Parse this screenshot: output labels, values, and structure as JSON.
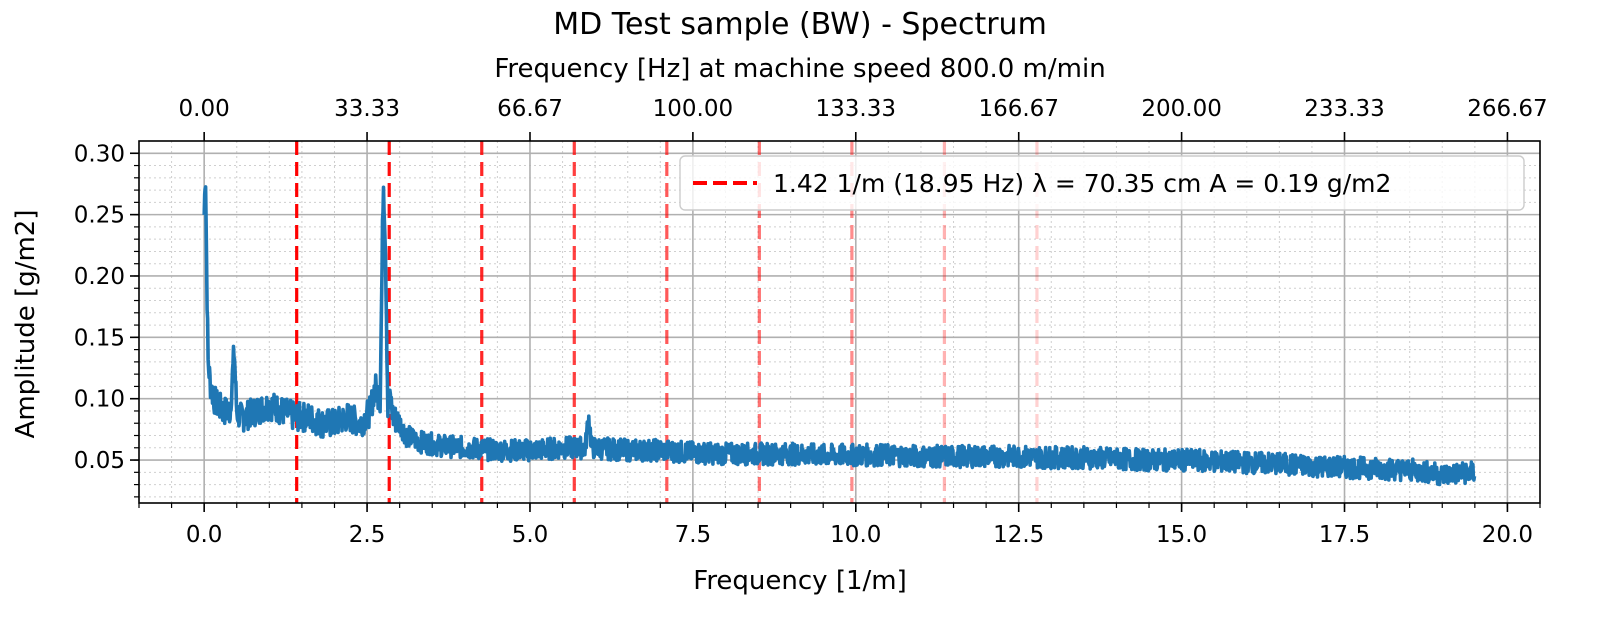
{
  "chart_data": {
    "type": "line",
    "title": "MD Test sample (BW) - Spectrum",
    "xlabel": "Frequency [1/m]",
    "ylabel": "Amplitude [g/m2]",
    "x2label": "Frequency [Hz] at machine speed 800.0 m/min",
    "xlim": [
      -1.0,
      20.5
    ],
    "ylim": [
      0.015,
      0.31
    ],
    "x_ticks": [
      0.0,
      2.5,
      5.0,
      7.5,
      10.0,
      12.5,
      15.0,
      17.5,
      20.0
    ],
    "x_tick_labels": [
      "0.0",
      "2.5",
      "5.0",
      "7.5",
      "10.0",
      "12.5",
      "15.0",
      "17.5",
      "20.0"
    ],
    "y_ticks": [
      0.05,
      0.1,
      0.15,
      0.2,
      0.25,
      0.3
    ],
    "y_tick_labels": [
      "0.05",
      "0.10",
      "0.15",
      "0.20",
      "0.25",
      "0.30"
    ],
    "x2_ticks_hz": [
      0.0,
      33.33,
      66.67,
      100.0,
      133.33,
      166.67,
      200.0,
      233.33,
      266.67
    ],
    "x2_tick_labels": [
      "0.00",
      "33.33",
      "66.67",
      "100.00",
      "133.33",
      "166.67",
      "200.00",
      "233.33",
      "266.67"
    ],
    "hz_per_unit": 13.3333,
    "grid": true,
    "minor_grid": true,
    "legend_position": "top-right",
    "series": [
      {
        "color": "#1f77b4",
        "x": [
          0.0,
          0.02,
          0.04,
          0.06,
          0.1,
          0.15,
          0.2,
          0.3,
          0.4,
          0.46,
          0.5,
          0.55,
          0.6,
          0.8,
          1.0,
          1.2,
          1.4,
          1.6,
          1.8,
          2.0,
          2.2,
          2.4,
          2.55,
          2.62,
          2.7,
          2.75,
          2.78,
          2.82,
          2.86,
          2.9,
          3.0,
          3.1,
          3.3,
          3.6,
          4.0,
          4.5,
          5.0,
          5.5,
          5.85,
          5.9,
          5.95,
          6.5,
          7.0,
          7.5,
          8.0,
          8.5,
          9.0,
          9.5,
          10.0,
          10.5,
          11.0,
          11.5,
          12.0,
          12.5,
          13.0,
          13.5,
          14.0,
          14.5,
          15.0,
          15.5,
          16.0,
          16.5,
          17.0,
          17.5,
          18.0,
          18.5,
          18.8,
          19.0,
          19.2,
          19.5
        ],
        "y": [
          0.25,
          0.29,
          0.2,
          0.13,
          0.11,
          0.1,
          0.095,
          0.09,
          0.09,
          0.14,
          0.09,
          0.085,
          0.085,
          0.09,
          0.095,
          0.09,
          0.085,
          0.085,
          0.08,
          0.08,
          0.085,
          0.08,
          0.09,
          0.11,
          0.1,
          0.28,
          0.23,
          0.09,
          0.1,
          0.085,
          0.08,
          0.07,
          0.065,
          0.062,
          0.06,
          0.058,
          0.058,
          0.06,
          0.06,
          0.085,
          0.06,
          0.058,
          0.058,
          0.056,
          0.055,
          0.055,
          0.055,
          0.054,
          0.054,
          0.054,
          0.053,
          0.053,
          0.053,
          0.053,
          0.052,
          0.052,
          0.051,
          0.05,
          0.05,
          0.049,
          0.048,
          0.047,
          0.045,
          0.044,
          0.043,
          0.042,
          0.04,
          0.038,
          0.039,
          0.04
        ]
      }
    ],
    "harmonics": {
      "color": "#ff0000",
      "x": [
        1.42,
        2.84,
        4.26,
        5.68,
        7.1,
        8.52,
        9.94,
        11.36,
        12.78
      ],
      "opacity": [
        1.0,
        0.95,
        0.85,
        0.75,
        0.65,
        0.55,
        0.45,
        0.3,
        0.18
      ]
    },
    "legend": [
      {
        "label": "1.42 1/m (18.95 Hz) λ = 70.35 cm A = 0.19 g/m2",
        "color": "#ff0000",
        "style": "dashed"
      }
    ]
  }
}
